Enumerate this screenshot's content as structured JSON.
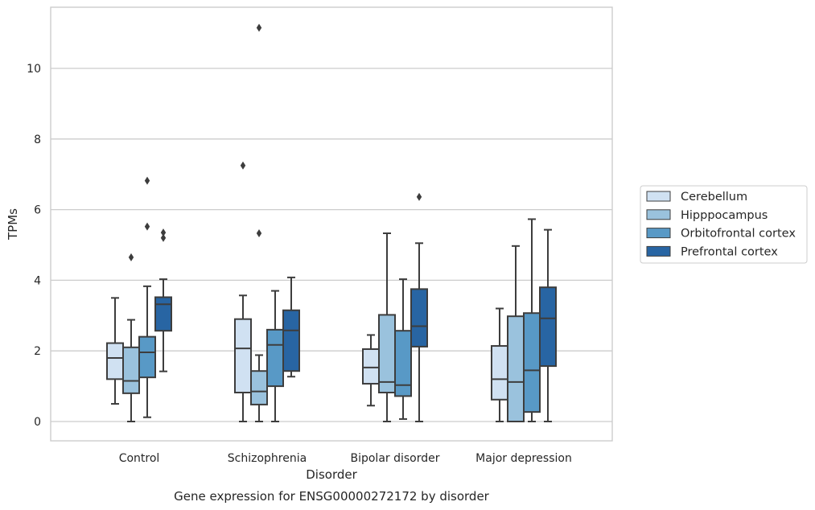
{
  "chart_data": {
    "type": "box",
    "title": "",
    "caption": "Gene expression for ENSG00000272172 by disorder",
    "xlabel": "Disorder",
    "ylabel": "TPMs",
    "ylim": [
      -0.55,
      11.7
    ],
    "yticks": [
      0,
      2,
      4,
      6,
      8,
      10
    ],
    "grid": true,
    "legend_position": "right",
    "categories": [
      "Control",
      "Schizophrenia",
      "Bipolar disorder",
      "Major depression"
    ],
    "series": [
      {
        "name": "Cerebellum",
        "color": "#d0e1f2",
        "boxes": [
          {
            "whislo": 0.5,
            "q1": 1.2,
            "med": 1.8,
            "q3": 2.22,
            "whishi": 3.5,
            "fliers": []
          },
          {
            "whislo": 0.0,
            "q1": 0.82,
            "med": 2.07,
            "q3": 2.9,
            "whishi": 3.57,
            "fliers": [
              7.25
            ]
          },
          {
            "whislo": 0.45,
            "q1": 1.07,
            "med": 1.53,
            "q3": 2.05,
            "whishi": 2.45,
            "fliers": []
          },
          {
            "whislo": 0.0,
            "q1": 0.62,
            "med": 1.2,
            "q3": 2.14,
            "whishi": 3.2,
            "fliers": []
          }
        ]
      },
      {
        "name": "Hipppocampus",
        "color": "#9ac2dd",
        "boxes": [
          {
            "whislo": 0.0,
            "q1": 0.8,
            "med": 1.15,
            "q3": 2.1,
            "whishi": 2.88,
            "fliers": [
              4.65
            ]
          },
          {
            "whislo": 0.0,
            "q1": 0.48,
            "med": 0.85,
            "q3": 1.43,
            "whishi": 1.88,
            "fliers": [
              5.33,
              11.15
            ]
          },
          {
            "whislo": 0.0,
            "q1": 0.82,
            "med": 1.12,
            "q3": 3.02,
            "whishi": 5.33,
            "fliers": []
          },
          {
            "whislo": 0.0,
            "q1": 0.0,
            "med": 1.12,
            "q3": 2.98,
            "whishi": 4.97,
            "fliers": []
          }
        ]
      },
      {
        "name": "Orbitofrontal cortex",
        "color": "#5899c6",
        "boxes": [
          {
            "whislo": 0.12,
            "q1": 1.25,
            "med": 1.96,
            "q3": 2.4,
            "whishi": 3.83,
            "fliers": [
              5.52,
              6.82
            ]
          },
          {
            "whislo": 0.0,
            "q1": 1.0,
            "med": 2.17,
            "q3": 2.6,
            "whishi": 3.7,
            "fliers": []
          },
          {
            "whislo": 0.07,
            "q1": 0.72,
            "med": 1.03,
            "q3": 2.57,
            "whishi": 4.03,
            "fliers": []
          },
          {
            "whislo": 0.0,
            "q1": 0.27,
            "med": 1.45,
            "q3": 3.07,
            "whishi": 5.73,
            "fliers": []
          }
        ]
      },
      {
        "name": "Prefrontal cortex",
        "color": "#2865a3",
        "boxes": [
          {
            "whislo": 1.42,
            "q1": 2.57,
            "med": 3.32,
            "q3": 3.52,
            "whishi": 4.03,
            "fliers": [
              5.2,
              5.35
            ]
          },
          {
            "whislo": 1.27,
            "q1": 1.43,
            "med": 2.58,
            "q3": 3.15,
            "whishi": 4.08,
            "fliers": []
          },
          {
            "whislo": 0.0,
            "q1": 2.12,
            "med": 2.7,
            "q3": 3.75,
            "whishi": 5.05,
            "fliers": [
              6.36
            ]
          },
          {
            "whislo": 0.0,
            "q1": 1.57,
            "med": 2.92,
            "q3": 3.8,
            "whishi": 5.43,
            "fliers": []
          }
        ]
      }
    ]
  }
}
